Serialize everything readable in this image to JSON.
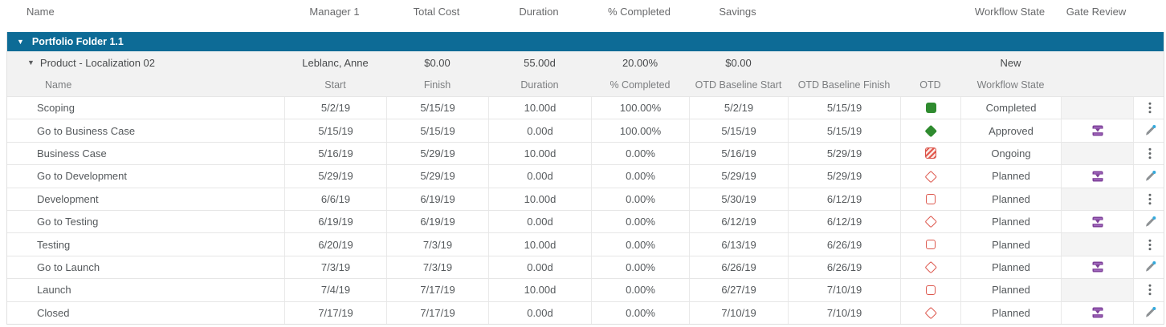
{
  "header": {
    "columns": [
      "Name",
      "Manager 1",
      "Total Cost",
      "Duration",
      "% Completed",
      "Savings",
      "Workflow State",
      "Gate Review"
    ]
  },
  "portfolio_folder": {
    "label": "Portfolio Folder 1.1",
    "collapse_icon": "triangle-down"
  },
  "product_row": {
    "name": "Product - Localization 02",
    "manager_1": "Leblanc, Anne",
    "total_cost": "$0.00",
    "duration": "55.00d",
    "pct_completed": "20.00%",
    "savings": "$0.00",
    "workflow_state": "New",
    "collapse_icon": "triangle-down"
  },
  "task_header": {
    "columns": [
      "Name",
      "Start",
      "Finish",
      "Duration",
      "% Completed",
      "OTD Baseline Start",
      "OTD Baseline Finish",
      "OTD",
      "Workflow State"
    ]
  },
  "tasks": [
    {
      "name": "Scoping",
      "start": "5/2/19",
      "finish": "5/15/19",
      "duration": "10.00d",
      "pct_completed": "100.00%",
      "otd_baseline_start": "5/2/19",
      "otd_baseline_finish": "5/15/19",
      "otd_icon": "green-filled-square",
      "workflow_state": "Completed",
      "gate_review_icon": "",
      "action_icon": "more-menu"
    },
    {
      "name": "Go to Business Case",
      "start": "5/15/19",
      "finish": "5/15/19",
      "duration": "0.00d",
      "pct_completed": "100.00%",
      "otd_baseline_start": "5/15/19",
      "otd_baseline_finish": "5/15/19",
      "otd_icon": "green-filled-diamond",
      "workflow_state": "Approved",
      "gate_review_icon": "stage-gate",
      "action_icon": "edit-pencil"
    },
    {
      "name": "Business Case",
      "start": "5/16/19",
      "finish": "5/29/19",
      "duration": "10.00d",
      "pct_completed": "0.00%",
      "otd_baseline_start": "5/16/19",
      "otd_baseline_finish": "5/29/19",
      "otd_icon": "red-hatched-square",
      "workflow_state": "Ongoing",
      "gate_review_icon": "",
      "action_icon": "more-menu"
    },
    {
      "name": "Go to Development",
      "start": "5/29/19",
      "finish": "5/29/19",
      "duration": "0.00d",
      "pct_completed": "0.00%",
      "otd_baseline_start": "5/29/19",
      "otd_baseline_finish": "5/29/19",
      "otd_icon": "red-diamond-outline",
      "workflow_state": "Planned",
      "gate_review_icon": "stage-gate",
      "action_icon": "edit-pencil"
    },
    {
      "name": "Development",
      "start": "6/6/19",
      "finish": "6/19/19",
      "duration": "10.00d",
      "pct_completed": "0.00%",
      "otd_baseline_start": "5/30/19",
      "otd_baseline_finish": "6/12/19",
      "otd_icon": "red-square-outline",
      "workflow_state": "Planned",
      "gate_review_icon": "",
      "action_icon": "more-menu"
    },
    {
      "name": "Go to Testing",
      "start": "6/19/19",
      "finish": "6/19/19",
      "duration": "0.00d",
      "pct_completed": "0.00%",
      "otd_baseline_start": "6/12/19",
      "otd_baseline_finish": "6/12/19",
      "otd_icon": "red-diamond-outline",
      "workflow_state": "Planned",
      "gate_review_icon": "stage-gate",
      "action_icon": "edit-pencil"
    },
    {
      "name": "Testing",
      "start": "6/20/19",
      "finish": "7/3/19",
      "duration": "10.00d",
      "pct_completed": "0.00%",
      "otd_baseline_start": "6/13/19",
      "otd_baseline_finish": "6/26/19",
      "otd_icon": "red-square-outline",
      "workflow_state": "Planned",
      "gate_review_icon": "",
      "action_icon": "more-menu"
    },
    {
      "name": "Go to Launch",
      "start": "7/3/19",
      "finish": "7/3/19",
      "duration": "0.00d",
      "pct_completed": "0.00%",
      "otd_baseline_start": "6/26/19",
      "otd_baseline_finish": "6/26/19",
      "otd_icon": "red-diamond-outline",
      "workflow_state": "Planned",
      "gate_review_icon": "stage-gate",
      "action_icon": "edit-pencil"
    },
    {
      "name": "Launch",
      "start": "7/4/19",
      "finish": "7/17/19",
      "duration": "10.00d",
      "pct_completed": "0.00%",
      "otd_baseline_start": "6/27/19",
      "otd_baseline_finish": "7/10/19",
      "otd_icon": "red-square-outline",
      "workflow_state": "Planned",
      "gate_review_icon": "",
      "action_icon": "more-menu"
    },
    {
      "name": "Closed",
      "start": "7/17/19",
      "finish": "7/17/19",
      "duration": "0.00d",
      "pct_completed": "0.00%",
      "otd_baseline_start": "7/10/19",
      "otd_baseline_finish": "7/10/19",
      "otd_icon": "red-diamond-outline",
      "workflow_state": "Planned",
      "gate_review_icon": "stage-gate",
      "action_icon": "edit-pencil"
    }
  ],
  "colors": {
    "band_blue": "#0d6b96",
    "row_shade_gray": "#f2f2f2",
    "otd_green": "#2f8b2f",
    "otd_red": "#dd584e",
    "gate_purple": "#7d3f98",
    "edit_dot_blue": "#33a9dc"
  }
}
